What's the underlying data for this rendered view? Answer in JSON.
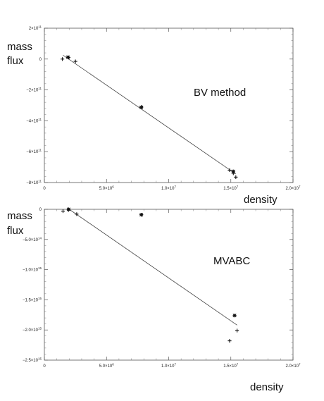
{
  "chart_data": [
    {
      "type": "scatter",
      "annotation": "BV method",
      "xlabel": "density",
      "ylabel_lines": [
        "mass",
        "flux"
      ],
      "xlim": [
        0,
        20000000
      ],
      "ylim": [
        -800000000000,
        200000000000
      ],
      "x_ticks": [
        {
          "value": 0,
          "mant": "0",
          "exp": ""
        },
        {
          "value": 5000000,
          "mant": "5.0×10",
          "exp": "6"
        },
        {
          "value": 10000000,
          "mant": "1.0×10",
          "exp": "7"
        },
        {
          "value": 15000000,
          "mant": "1.5×10",
          "exp": "7"
        },
        {
          "value": 20000000,
          "mant": "2.0×10",
          "exp": "7"
        }
      ],
      "y_ticks": [
        {
          "value": 200000000000,
          "mant": "2×10",
          "exp": "11"
        },
        {
          "value": 0,
          "mant": "0",
          "exp": ""
        },
        {
          "value": -200000000000,
          "mant": "−2×10",
          "exp": "11"
        },
        {
          "value": -400000000000,
          "mant": "−4×10",
          "exp": "11"
        },
        {
          "value": -600000000000,
          "mant": "−6×10",
          "exp": "11"
        },
        {
          "value": -800000000000,
          "mant": "−8×10",
          "exp": "11"
        }
      ],
      "series": [
        {
          "marker": "plus",
          "points": [
            [
              1450000,
              0
            ],
            [
              1950000,
              10000000000
            ],
            [
              2500000,
              -15000000000
            ],
            [
              7800000,
              -310000000000
            ],
            [
              14900000,
              -720000000000
            ],
            [
              15200000,
              -740000000000
            ],
            [
              15400000,
              -765000000000
            ]
          ]
        },
        {
          "marker": "star",
          "points": [
            [
              1900000,
              12000000000
            ],
            [
              7800000,
              -313000000000
            ],
            [
              15200000,
              -728000000000
            ]
          ]
        }
      ],
      "fit_line": [
        [
          1500000,
          25000000000
        ],
        [
          15400000,
          -745000000000
        ]
      ],
      "grid": false
    },
    {
      "type": "scatter",
      "annotation": "MVABC",
      "xlabel": "density",
      "ylabel_lines": [
        "mass",
        "flux"
      ],
      "xlim": [
        0,
        20000000
      ],
      "ylim": [
        -2500000000000000,
        0
      ],
      "x_ticks": [
        {
          "value": 0,
          "mant": "0",
          "exp": ""
        },
        {
          "value": 5000000,
          "mant": "5.0×10",
          "exp": "6"
        },
        {
          "value": 10000000,
          "mant": "1.0×10",
          "exp": "7"
        },
        {
          "value": 15000000,
          "mant": "1.5×10",
          "exp": "7"
        },
        {
          "value": 20000000,
          "mant": "2.0×10",
          "exp": "7"
        }
      ],
      "y_ticks": [
        {
          "value": 0,
          "mant": "0",
          "exp": ""
        },
        {
          "value": -500000000000000,
          "mant": "−5.0×10",
          "exp": "14"
        },
        {
          "value": -1000000000000000,
          "mant": "−1.0×10",
          "exp": "15"
        },
        {
          "value": -1500000000000000,
          "mant": "−1.5×10",
          "exp": "15"
        },
        {
          "value": -2000000000000000,
          "mant": "−2.0×10",
          "exp": "15"
        },
        {
          "value": -2500000000000000,
          "mant": "−2.5×10",
          "exp": "15"
        }
      ],
      "series": [
        {
          "marker": "plus",
          "points": [
            [
              1500000,
              -30000000000000
            ],
            [
              1950000,
              -10000000000000
            ],
            [
              2600000,
              -80000000000000
            ],
            [
              7800000,
              -90000000000000
            ],
            [
              14900000,
              -2180000000000000
            ],
            [
              15500000,
              -2010000000000000
            ]
          ]
        },
        {
          "marker": "star",
          "points": [
            [
              1950000,
              0
            ],
            [
              7800000,
              -90000000000000
            ],
            [
              15300000,
              -1760000000000000
            ]
          ]
        }
      ],
      "fit_line": [
        [
          2000000,
          0
        ],
        [
          15500000,
          -1920000000000000
        ]
      ],
      "grid": false
    }
  ]
}
